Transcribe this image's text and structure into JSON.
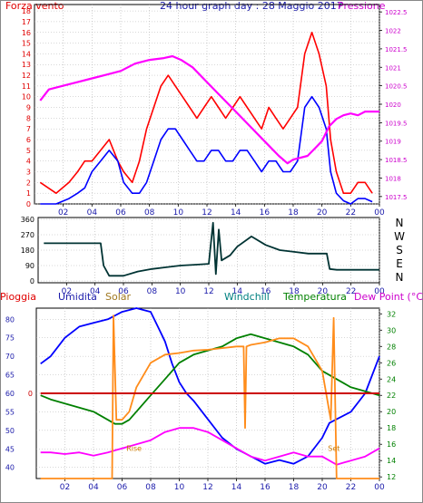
{
  "title": "24 hour graph day : 28 Maggio 2017",
  "colors": {
    "wind": "#ff0000",
    "gust": "#ff0000",
    "avg_wind": "#0000ff",
    "pressure": "#ff00ff",
    "direction": "#003333",
    "humidity": "#0000ff",
    "solar": "#ff8c1a",
    "windchill": "#008080",
    "temperature": "#008000",
    "dewpoint": "#ff00ff",
    "rain": "#cc0000",
    "grid": "#b0b0b0"
  },
  "chart_data": [
    {
      "type": "line",
      "title": "24 hour graph day : 28 Maggio 2017",
      "left_label": "Forza vento",
      "right_label": "Pressione",
      "x_ticks": [
        "02",
        "04",
        "06",
        "08",
        "10",
        "12",
        "14",
        "16",
        "18",
        "20",
        "22",
        "00"
      ],
      "y_left_ticks": [
        "0",
        "1",
        "2",
        "3",
        "4",
        "5",
        "6",
        "7",
        "8",
        "9",
        "10",
        "11",
        "12",
        "13",
        "14",
        "15",
        "16",
        "17",
        "18"
      ],
      "y_right_ticks": [
        "1017.5",
        "1018",
        "1018.5",
        "1019",
        "1019.5",
        "1020",
        "1020.5",
        "1021",
        "1021.5",
        "1022",
        "1022.5"
      ],
      "ylim_left": [
        0,
        18.6
      ],
      "ylim_right": [
        1017.3,
        1022.7
      ],
      "series": [
        {
          "name": "Forza vento",
          "axis": "left",
          "color": "#ff0000",
          "x": [
            0.4,
            1.5,
            2.4,
            3.0,
            3.5,
            4.0,
            4.6,
            5.2,
            5.8,
            6.2,
            6.8,
            7.3,
            7.8,
            8.3,
            8.8,
            9.3,
            9.8,
            10.3,
            10.8,
            11.3,
            11.8,
            12.3,
            12.8,
            13.3,
            13.8,
            14.3,
            14.8,
            15.3,
            15.8,
            16.3,
            16.8,
            17.3,
            17.8,
            18.3,
            18.8,
            19.3,
            19.8,
            20.3,
            20.6,
            21.0,
            21.5,
            22.0,
            22.5,
            23.0,
            23.5
          ],
          "y": [
            2,
            1,
            2,
            3,
            4,
            4,
            5,
            6,
            4,
            3,
            2,
            4,
            7,
            9,
            11,
            12,
            11,
            10,
            9,
            8,
            9,
            10,
            9,
            8,
            9,
            10,
            9,
            8,
            7,
            9,
            8,
            7,
            8,
            9,
            14,
            16,
            14,
            11,
            6,
            3,
            1,
            1,
            2,
            2,
            1
          ]
        },
        {
          "name": "",
          "axis": "left",
          "color": "#0000ff",
          "x": [
            0.4,
            1.5,
            2.4,
            3.0,
            3.5,
            4.0,
            4.6,
            5.2,
            5.8,
            6.2,
            6.8,
            7.3,
            7.8,
            8.3,
            8.8,
            9.3,
            9.8,
            10.3,
            10.8,
            11.3,
            11.8,
            12.3,
            12.8,
            13.3,
            13.8,
            14.3,
            14.8,
            15.3,
            15.8,
            16.3,
            16.8,
            17.3,
            17.8,
            18.3,
            18.8,
            19.3,
            19.8,
            20.3,
            20.6,
            21.0,
            21.5,
            22.0,
            22.5,
            23.0,
            23.5
          ],
          "y": [
            0,
            0,
            0.5,
            1,
            1.5,
            3,
            4,
            5,
            4,
            2,
            1,
            1,
            2,
            4,
            6,
            7,
            7,
            6,
            5,
            4,
            4,
            5,
            5,
            4,
            4,
            5,
            5,
            4,
            3,
            4,
            4,
            3,
            3,
            4,
            9,
            10,
            9,
            7,
            3,
            1,
            0.3,
            0,
            0.5,
            0.5,
            0.2
          ]
        },
        {
          "name": "Pressione",
          "axis": "right",
          "color": "#ff00ff",
          "x": [
            0.4,
            1,
            2,
            3,
            4,
            5,
            6,
            7,
            8,
            9,
            9.6,
            10.2,
            11,
            12,
            13,
            14,
            15,
            16,
            17,
            17.6,
            18,
            19,
            19.5,
            20,
            20.5,
            21,
            21.5,
            22,
            22.5,
            23,
            23.5,
            24
          ],
          "y": [
            1020.1,
            1020.4,
            1020.5,
            1020.6,
            1020.7,
            1020.8,
            1020.9,
            1021.1,
            1021.2,
            1021.25,
            1021.3,
            1021.2,
            1021.0,
            1020.6,
            1020.2,
            1019.8,
            1019.4,
            1019.0,
            1018.6,
            1018.4,
            1018.5,
            1018.6,
            1018.8,
            1019.0,
            1019.4,
            1019.6,
            1019.7,
            1019.75,
            1019.7,
            1019.8,
            1019.8,
            1019.8
          ]
        }
      ]
    },
    {
      "type": "line",
      "y_ticks": [
        "0",
        "90",
        "180",
        "270",
        "360"
      ],
      "right_labels": [
        "N",
        "W",
        "S",
        "E",
        "N"
      ],
      "x_ticks": [
        "02",
        "04",
        "06",
        "08",
        "10",
        "12",
        "14",
        "16",
        "18",
        "20",
        "22",
        "00"
      ],
      "ylim": [
        0,
        360
      ],
      "series": [
        {
          "name": "",
          "color": "#003333",
          "x": [
            0.4,
            4.4,
            4.6,
            5,
            6,
            7,
            8,
            9,
            10,
            11,
            12,
            12.3,
            12.5,
            12.7,
            12.9,
            13.5,
            14,
            15,
            16,
            17,
            18,
            19,
            20,
            20.3,
            20.5,
            21,
            22,
            23,
            24
          ],
          "y": [
            220,
            220,
            90,
            30,
            30,
            55,
            70,
            80,
            90,
            95,
            100,
            340,
            40,
            300,
            120,
            150,
            200,
            260,
            210,
            180,
            170,
            160,
            160,
            160,
            70,
            65,
            65,
            65,
            65
          ]
        }
      ]
    },
    {
      "type": "line",
      "labels_top": [
        "Pioggia",
        "Umidita",
        "Solar",
        "Windchill",
        "Temperatura",
        "Dew Point (°C)"
      ],
      "x_ticks": [
        "02",
        "04",
        "06",
        "08",
        "10",
        "12",
        "14",
        "16",
        "18",
        "20",
        "22",
        "00"
      ],
      "y_left_ticks": [
        "40",
        "45",
        "50",
        "55",
        "60",
        "65",
        "70",
        "75",
        "80"
      ],
      "y_right_ticks": [
        "12",
        "14",
        "16",
        "18",
        "20",
        "22",
        "24",
        "26",
        "28",
        "30",
        "32"
      ],
      "rain_tick": "0",
      "ylim_left": [
        37,
        83
      ],
      "ylim_right": [
        11.8,
        32.7
      ],
      "annotations": [
        "Rise",
        "Set"
      ],
      "series": [
        {
          "name": "Umidita",
          "axis": "left",
          "color": "#0000ff",
          "x": [
            0.3,
            1,
            2,
            3,
            4,
            5,
            6,
            7,
            8,
            8.5,
            9,
            9.5,
            10,
            10.5,
            11,
            12,
            13,
            14,
            15,
            16,
            17,
            18,
            19,
            20,
            20.5,
            21,
            22,
            23,
            24
          ],
          "y": [
            68,
            70,
            75,
            78,
            79,
            80,
            82,
            83,
            82,
            78,
            74,
            68,
            63,
            60,
            58,
            53,
            48,
            45,
            43,
            41,
            42,
            41,
            43,
            48,
            52,
            53,
            55,
            60,
            70
          ]
        },
        {
          "name": "Temperatura",
          "axis": "right",
          "color": "#008000",
          "x": [
            0.3,
            1,
            2,
            3,
            4,
            5,
            5.5,
            6,
            6.5,
            7,
            8,
            9,
            10,
            11,
            12,
            13,
            14,
            15,
            16,
            17,
            18,
            19,
            20,
            21,
            22,
            23,
            24
          ],
          "y": [
            22,
            21.5,
            21,
            20.5,
            20,
            19,
            18.5,
            18.5,
            19,
            20,
            22,
            24,
            26,
            27,
            27.5,
            28,
            29,
            29.5,
            29,
            28.5,
            28,
            27,
            25,
            24,
            23,
            22.5,
            22
          ]
        },
        {
          "name": "Dew Point (°C)",
          "axis": "right",
          "color": "#ff00ff",
          "x": [
            0.3,
            1,
            2,
            3,
            4,
            5,
            6,
            7,
            8,
            9,
            10,
            11,
            12,
            13,
            14,
            15,
            16,
            17,
            18,
            19,
            20,
            21,
            22,
            23,
            24
          ],
          "y": [
            15,
            15,
            14.8,
            15,
            14.6,
            15,
            15.5,
            16,
            16.5,
            17.5,
            18,
            18,
            17.5,
            16.5,
            15.5,
            14.5,
            14,
            14.5,
            15,
            14.5,
            14.5,
            13.5,
            14,
            14.5,
            15.5
          ]
        },
        {
          "name": "Solar",
          "axis": "right",
          "color": "#ff8c1a",
          "x": [
            0.3,
            5.3,
            5.4,
            5.6,
            6,
            6.5,
            7,
            8,
            9,
            10,
            11,
            12,
            13,
            14,
            14.5,
            14.6,
            14.7,
            15,
            16,
            17,
            18,
            19,
            20,
            20.6,
            20.8,
            21,
            24
          ],
          "y": [
            11.8,
            11.8,
            31.8,
            19,
            19,
            20,
            23,
            26,
            27,
            27.2,
            27.5,
            27.6,
            27.8,
            28,
            28,
            18,
            28,
            28.2,
            28.5,
            29,
            29,
            28,
            25,
            19,
            31.5,
            11.8,
            11.8
          ]
        },
        {
          "name": "Pioggia",
          "axis": "left",
          "color": "#cc0000",
          "x": [
            0.3,
            24
          ],
          "y": [
            60,
            60
          ]
        }
      ]
    }
  ]
}
